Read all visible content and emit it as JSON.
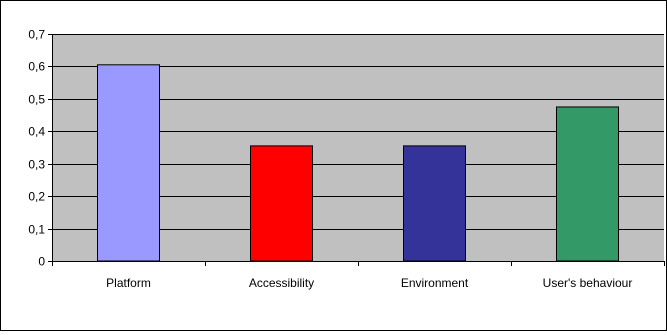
{
  "chart_data": {
    "type": "bar",
    "categories": [
      "Platform",
      "Accessibility",
      "Environment",
      "User's behaviour"
    ],
    "values": [
      0.605,
      0.355,
      0.355,
      0.475
    ],
    "colors": [
      "#9999ff",
      "#ff0000",
      "#333399",
      "#339966"
    ],
    "plot_background": "#c0c0c0",
    "ylim": [
      0,
      0.7
    ],
    "ytick_values": [
      0,
      0.1,
      0.2,
      0.3,
      0.4,
      0.5,
      0.6,
      0.7
    ],
    "ytick_labels": [
      "0",
      "0,1",
      "0,2",
      "0,3",
      "0,4",
      "0,5",
      "0,6",
      "0,7"
    ],
    "grid": true,
    "legend": "none"
  }
}
